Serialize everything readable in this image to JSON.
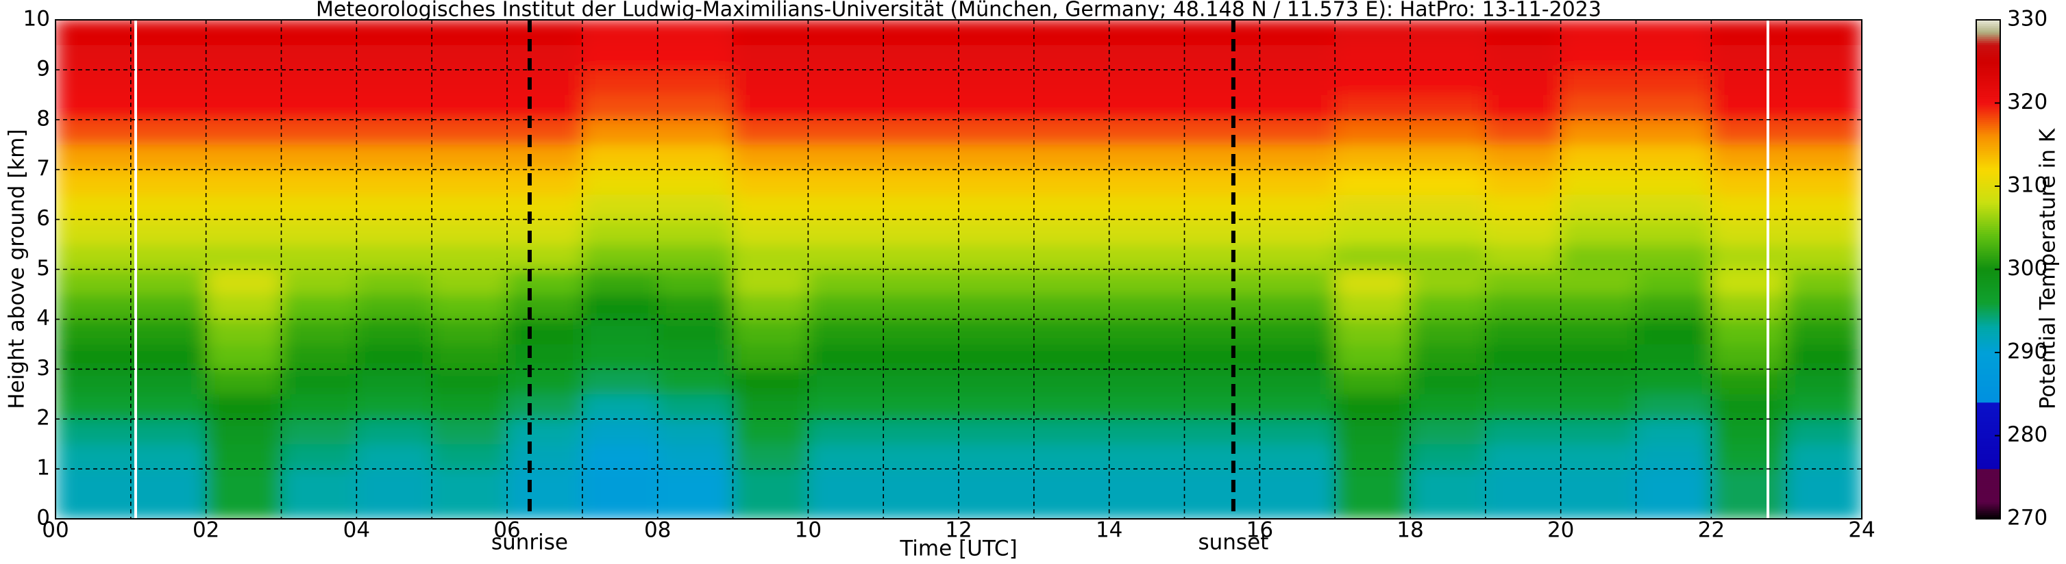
{
  "chart_data": {
    "type": "heatmap",
    "title": "Meteorologisches Institut der Ludwig-Maximilians-Universität (München, Germany; 48.148 N / 11.573 E):    HatPro: 13-11-2023",
    "xlabel": "Time [UTC]",
    "ylabel": "Height above ground [km]",
    "colorbar_label": "Potential Temperature in K",
    "xlim": [
      0,
      24
    ],
    "ylim": [
      0,
      10
    ],
    "xticks": [
      {
        "value": 0,
        "label": "00"
      },
      {
        "value": 2,
        "label": "02"
      },
      {
        "value": 4,
        "label": "04"
      },
      {
        "value": 6,
        "label": "06"
      },
      {
        "value": 8,
        "label": "08"
      },
      10,
      12,
      14,
      16,
      18,
      20,
      22,
      24
    ],
    "xminorticks": [
      1,
      3,
      5,
      7,
      9,
      11,
      13,
      15,
      17,
      19,
      21,
      23
    ],
    "yticks": [
      0,
      1,
      2,
      3,
      4,
      5,
      6,
      7,
      8,
      9,
      10
    ],
    "grid": true,
    "clim": [
      270,
      330
    ],
    "cticks": [
      270,
      280,
      290,
      300,
      310,
      320,
      330
    ],
    "colorscale": [
      [
        270,
        "#000000"
      ],
      [
        272,
        "#5a0045"
      ],
      [
        276,
        "#5a0045"
      ],
      [
        276.01,
        "#0a00b8"
      ],
      [
        284,
        "#0a10c8"
      ],
      [
        284.01,
        "#0090e0"
      ],
      [
        290,
        "#00a0d8"
      ],
      [
        293,
        "#00a8a8"
      ],
      [
        296,
        "#10a030"
      ],
      [
        300,
        "#109010"
      ],
      [
        304,
        "#60c010"
      ],
      [
        308,
        "#c8e010"
      ],
      [
        312,
        "#f8d800"
      ],
      [
        316,
        "#f89000"
      ],
      [
        320,
        "#f01010"
      ],
      [
        325,
        "#d00000"
      ],
      [
        327,
        "#c81010"
      ],
      [
        328.5,
        "#b0b080"
      ],
      [
        330,
        "#e8e8d8"
      ]
    ],
    "annotations": [
      {
        "label": "sunrise",
        "x": 6.3
      },
      {
        "label": "sunset",
        "x": 15.65
      }
    ],
    "xbins": [
      0,
      1,
      2,
      3,
      4,
      5,
      6,
      7,
      8,
      9,
      10,
      11,
      12,
      13,
      14,
      15,
      16,
      17,
      18,
      19,
      20,
      21,
      22,
      23,
      24
    ],
    "ybins": [
      0,
      0.5,
      1,
      1.5,
      2,
      2.5,
      3,
      3.5,
      4,
      4.5,
      5,
      5.5,
      6,
      6.5,
      7,
      7.5,
      8,
      8.5,
      9,
      9.5,
      10
    ],
    "z": [
      [
        292,
        292,
        296,
        293,
        292,
        293,
        291,
        289,
        290,
        294,
        292,
        292,
        292,
        292,
        292,
        292,
        292,
        296,
        293,
        292,
        292,
        291,
        295,
        292
      ],
      [
        292,
        292,
        296,
        293,
        292,
        293,
        291,
        289,
        290,
        294,
        292,
        292,
        292,
        292,
        292,
        292,
        292,
        296,
        293,
        292,
        292,
        291,
        295,
        292
      ],
      [
        293,
        293,
        297,
        294,
        293,
        294,
        292,
        290,
        291,
        295,
        293,
        293,
        293,
        293,
        293,
        293,
        293,
        297,
        294,
        293,
        293,
        292,
        296,
        293
      ],
      [
        294,
        294,
        298,
        295,
        294,
        295,
        293,
        291,
        292,
        296,
        294,
        294,
        294,
        294,
        294,
        294,
        294,
        298,
        295,
        294,
        294,
        293,
        297,
        294
      ],
      [
        296,
        296,
        300,
        297,
        296,
        297,
        295,
        293,
        294,
        298,
        296,
        296,
        296,
        296,
        296,
        296,
        296,
        300,
        297,
        296,
        296,
        295,
        299,
        296
      ],
      [
        298,
        298,
        302,
        299,
        298,
        299,
        297,
        295,
        296,
        300,
        298,
        298,
        298,
        298,
        298,
        298,
        298,
        302,
        299,
        298,
        298,
        297,
        301,
        298
      ],
      [
        300,
        300,
        304,
        301,
        300,
        301,
        299,
        297,
        298,
        302,
        300,
        300,
        300,
        300,
        300,
        300,
        300,
        304,
        301,
        300,
        300,
        299,
        303,
        300
      ],
      [
        301,
        301,
        305,
        302,
        301,
        302,
        300,
        298,
        299,
        303,
        301,
        301,
        301,
        301,
        301,
        301,
        301,
        305,
        302,
        301,
        301,
        300,
        304,
        301
      ],
      [
        303,
        303,
        307,
        304,
        303,
        304,
        302,
        300,
        301,
        305,
        303,
        303,
        303,
        303,
        303,
        303,
        303,
        307,
        304,
        303,
        303,
        302,
        306,
        303
      ],
      [
        305,
        305,
        309,
        306,
        305,
        306,
        304,
        302,
        303,
        307,
        305,
        305,
        305,
        305,
        305,
        305,
        305,
        309,
        306,
        305,
        305,
        304,
        308,
        305
      ],
      [
        307,
        307,
        307,
        307,
        307,
        307,
        307,
        305,
        305,
        307,
        307,
        307,
        307,
        307,
        307,
        307,
        307,
        306,
        306,
        307,
        305,
        305,
        307,
        307
      ],
      [
        309,
        309,
        309,
        309,
        309,
        309,
        309,
        307,
        307,
        309,
        309,
        309,
        309,
        309,
        309,
        309,
        309,
        308,
        308,
        309,
        307,
        307,
        309,
        309
      ],
      [
        311,
        311,
        311,
        311,
        311,
        311,
        311,
        309,
        309,
        311,
        311,
        311,
        311,
        311,
        311,
        311,
        311,
        310,
        310,
        311,
        309,
        309,
        311,
        311
      ],
      [
        313,
        313,
        313,
        313,
        313,
        313,
        313,
        311,
        311,
        313,
        313,
        313,
        313,
        313,
        313,
        313,
        313,
        312,
        312,
        313,
        311,
        311,
        313,
        313
      ],
      [
        315,
        315,
        315,
        315,
        315,
        315,
        315,
        313,
        313,
        315,
        315,
        315,
        315,
        315,
        315,
        315,
        315,
        314,
        314,
        315,
        313,
        313,
        315,
        315
      ],
      [
        318,
        318,
        318,
        318,
        318,
        318,
        318,
        316,
        316,
        318,
        318,
        318,
        318,
        318,
        318,
        318,
        318,
        317,
        317,
        318,
        316,
        316,
        318,
        318
      ],
      [
        320,
        320,
        320,
        320,
        320,
        320,
        320,
        318,
        318,
        320,
        320,
        320,
        320,
        320,
        320,
        320,
        320,
        319,
        319,
        320,
        318,
        318,
        320,
        320
      ],
      [
        321,
        321,
        321,
        321,
        321,
        321,
        321,
        319,
        319,
        321,
        321,
        321,
        321,
        321,
        321,
        321,
        321,
        320,
        320,
        321,
        319,
        319,
        321,
        321
      ],
      [
        322,
        322,
        322,
        322,
        322,
        322,
        322,
        320,
        320,
        322,
        322,
        322,
        322,
        322,
        322,
        322,
        322,
        321,
        321,
        322,
        320,
        320,
        322,
        322
      ],
      [
        323,
        323,
        323,
        323,
        323,
        323,
        323,
        321,
        321,
        323,
        323,
        323,
        323,
        323,
        323,
        323,
        323,
        322,
        322,
        323,
        321,
        321,
        323,
        323
      ]
    ]
  }
}
